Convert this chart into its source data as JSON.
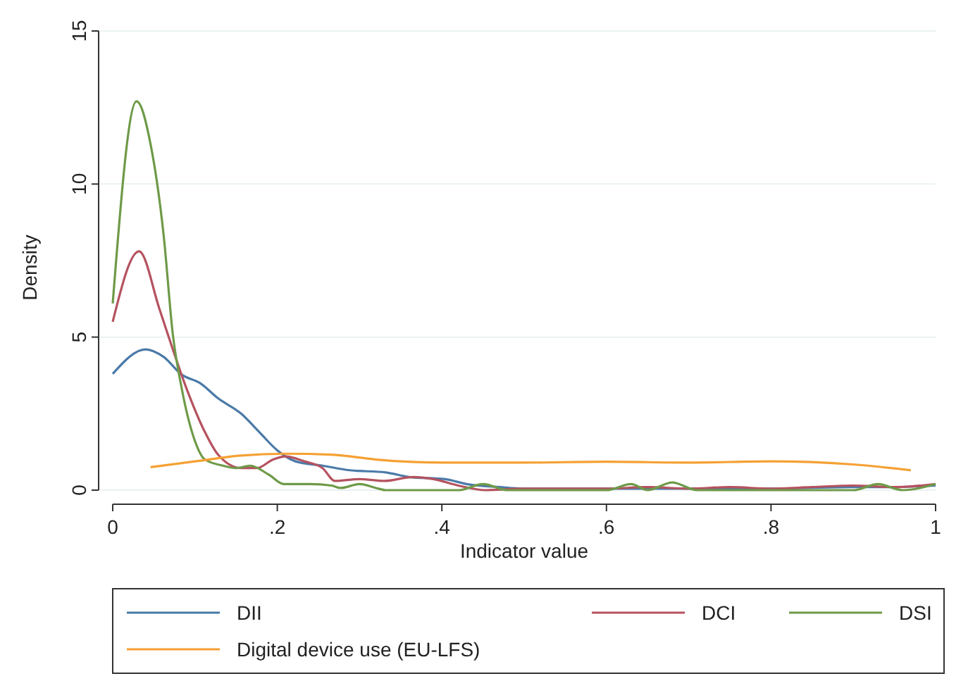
{
  "chart_data": {
    "type": "line",
    "xlabel": "Indicator value",
    "ylabel": "Density",
    "xlim": [
      0,
      1
    ],
    "ylim": [
      0,
      15
    ],
    "xticks": [
      0,
      {
        "value": 0.2,
        "label": ".2"
      },
      {
        "value": 0.4,
        "label": ".4"
      },
      {
        "value": 0.6,
        "label": ".6"
      },
      {
        "value": 0.8,
        "label": ".8"
      },
      1
    ],
    "yticks": [
      0,
      5,
      10,
      15
    ],
    "grid": "y",
    "legend": "bottom",
    "marker": "none",
    "line_style": "solid",
    "series": [
      {
        "name": "DII",
        "color": "#4a7aa8",
        "x": [
          0,
          0.04,
          0.062,
          0.084,
          0.106,
          0.128,
          0.156,
          0.178,
          0.2,
          0.222,
          0.255,
          0.288,
          0.332,
          0.36,
          0.404,
          0.43,
          0.47,
          0.5,
          0.6,
          0.7,
          0.8,
          0.9,
          0.95,
          1
        ],
        "values": [
          3.8,
          4.6,
          4.35,
          3.77,
          3.5,
          3.0,
          2.5,
          1.9,
          1.3,
          0.94,
          0.8,
          0.65,
          0.58,
          0.43,
          0.36,
          0.2,
          0.1,
          0.05,
          0.05,
          0.05,
          0.05,
          0.1,
          0.1,
          0.15
        ]
      },
      {
        "name": "DCI",
        "color": "#b5525f",
        "x": [
          0,
          0.032,
          0.057,
          0.073,
          0.09,
          0.112,
          0.128,
          0.156,
          0.175,
          0.195,
          0.21,
          0.233,
          0.255,
          0.27,
          0.3,
          0.33,
          0.365,
          0.39,
          0.42,
          0.453,
          0.5,
          0.6,
          0.65,
          0.7,
          0.75,
          0.8,
          0.85,
          0.9,
          0.95,
          1
        ],
        "values": [
          5.5,
          7.8,
          5.9,
          4.6,
          3.3,
          1.9,
          1.16,
          0.72,
          0.72,
          1.0,
          1.1,
          0.94,
          0.72,
          0.3,
          0.36,
          0.3,
          0.43,
          0.36,
          0.15,
          0,
          0.05,
          0.05,
          0.1,
          0.05,
          0.1,
          0.05,
          0.1,
          0.15,
          0.1,
          0.2
        ]
      },
      {
        "name": "DSI",
        "color": "#6e9a48",
        "x": [
          0,
          0.029,
          0.046,
          0.062,
          0.073,
          0.084,
          0.1,
          0.112,
          0.134,
          0.15,
          0.167,
          0.19,
          0.208,
          0.24,
          0.266,
          0.277,
          0.3,
          0.32,
          0.332,
          0.42,
          0.45,
          0.48,
          0.6,
          0.63,
          0.65,
          0.68,
          0.71,
          0.9,
          0.93,
          0.96,
          1
        ],
        "values": [
          6.1,
          12.7,
          11.3,
          8.3,
          5.1,
          3.3,
          1.6,
          1.0,
          0.8,
          0.72,
          0.8,
          0.5,
          0.2,
          0.2,
          0.15,
          0.07,
          0.2,
          0.07,
          0,
          0,
          0.2,
          0,
          0,
          0.2,
          0,
          0.25,
          0,
          0,
          0.2,
          0,
          0.2
        ]
      },
      {
        "name": "Digital device use (EU-LFS)",
        "color": "#f5a032",
        "x": [
          0.046,
          0.1,
          0.156,
          0.21,
          0.266,
          0.32,
          0.404,
          0.5,
          0.6,
          0.7,
          0.8,
          0.9,
          0.97
        ],
        "values": [
          0.75,
          0.94,
          1.13,
          1.19,
          1.16,
          1.0,
          0.9,
          0.9,
          0.93,
          0.9,
          0.94,
          0.84,
          0.65
        ]
      }
    ]
  }
}
